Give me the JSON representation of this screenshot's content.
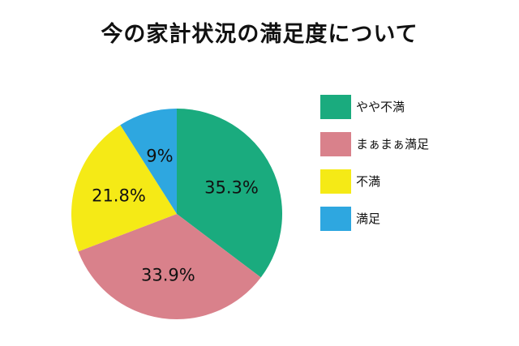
{
  "chart_data": {
    "type": "pie",
    "title": "今の家計状況の満足度について",
    "categories": [
      "やや不満",
      "まぁまぁ満足",
      "不満",
      "満足"
    ],
    "values": [
      35.3,
      33.9,
      21.8,
      9
    ],
    "value_labels": [
      "35.3%",
      "33.9%",
      "21.8%",
      "9%"
    ],
    "colors": [
      "#1aab7e",
      "#d9818b",
      "#f5ea16",
      "#2ea7e0"
    ],
    "legend_position": "right",
    "start_angle": "top",
    "direction": "clockwise"
  }
}
